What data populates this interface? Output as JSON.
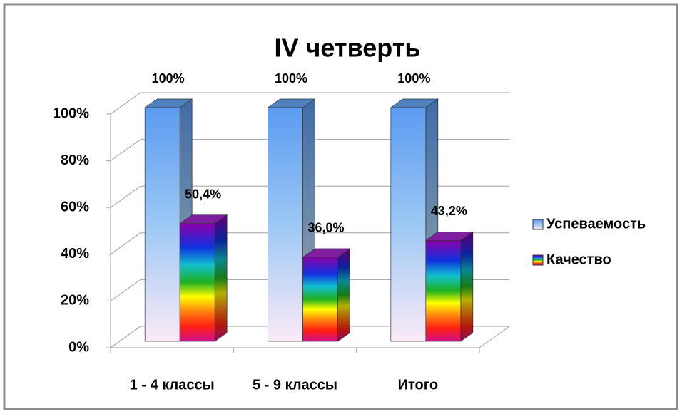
{
  "chart_data": {
    "type": "bar3d",
    "title": "IV четверть",
    "categories": [
      "1 - 4 классы",
      "5 - 9 классы",
      "Итого"
    ],
    "series": [
      {
        "name": "Успеваемость",
        "color": "#4f81bd",
        "values": [
          100,
          100,
          100
        ],
        "value_labels": [
          "100%",
          "100%",
          "100%"
        ]
      },
      {
        "name": "Качество",
        "color": "#7f1f9f",
        "values": [
          50.4,
          36.0,
          43.2
        ],
        "value_labels": [
          "50,4%",
          "36,0%",
          "43,2%"
        ]
      }
    ],
    "ylim": [
      0,
      100
    ],
    "yticks": [
      {
        "value": 0,
        "label": "0%"
      },
      {
        "value": 20,
        "label": "20%"
      },
      {
        "value": 40,
        "label": "40%"
      },
      {
        "value": 60,
        "label": "60%"
      },
      {
        "value": 80,
        "label": "80%"
      },
      {
        "value": 100,
        "label": "100%"
      }
    ],
    "grid": true,
    "legend": "right"
  }
}
